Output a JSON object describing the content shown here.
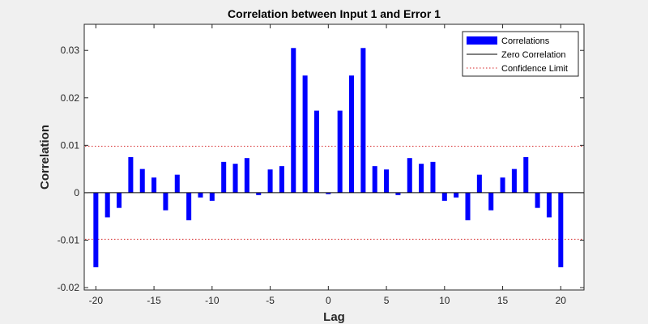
{
  "chart_data": {
    "type": "bar",
    "title": "Correlation between Input 1 and Error 1",
    "xlabel": "Lag",
    "ylabel": "Correlation",
    "xlim": [
      -21,
      22
    ],
    "ylim": [
      -0.0205,
      0.0355
    ],
    "xticks": [
      -20,
      -15,
      -10,
      -5,
      0,
      5,
      10,
      15,
      20
    ],
    "xtick_labels": [
      "-20",
      "-15",
      "-10",
      "-5",
      "0",
      "5",
      "10",
      "15",
      "20"
    ],
    "yticks": [
      -0.02,
      -0.01,
      0,
      0.01,
      0.02,
      0.03
    ],
    "ytick_labels": [
      "-0.02",
      "-0.01",
      "0",
      "0.01",
      "0.02",
      "0.03"
    ],
    "grid": false,
    "legend_position": "top-right",
    "bar_color": "#0000ff",
    "zero_line_color": "#000000",
    "confidence_color": "#d62728",
    "confidence_limit": 0.0098,
    "lags": [
      -20,
      -19,
      -18,
      -17,
      -16,
      -15,
      -14,
      -13,
      -12,
      -11,
      -10,
      -9,
      -8,
      -7,
      -6,
      -5,
      -4,
      -3,
      -2,
      -1,
      0,
      1,
      2,
      3,
      4,
      5,
      6,
      7,
      8,
      9,
      10,
      11,
      12,
      13,
      14,
      15,
      16,
      17,
      18,
      19,
      20
    ],
    "series": [
      {
        "name": "Correlations",
        "values": [
          -0.0157,
          -0.0052,
          -0.0032,
          0.0075,
          0.005,
          0.0032,
          -0.0037,
          0.0038,
          -0.0058,
          -0.001,
          -0.0017,
          0.0065,
          0.0061,
          0.0073,
          -0.0005,
          0.0049,
          0.0056,
          0.0305,
          0.0247,
          0.0173,
          -0.0003,
          0.0173,
          0.0247,
          0.0305,
          0.0056,
          0.0049,
          -0.0005,
          0.0073,
          0.0061,
          0.0065,
          -0.0017,
          -0.001,
          -0.0058,
          0.0038,
          -0.0037,
          0.0032,
          0.005,
          0.0075,
          -0.0032,
          -0.0052,
          -0.0157
        ]
      }
    ],
    "legend": [
      "Correlations",
      "Zero Correlation",
      "Confidence Limit"
    ]
  }
}
